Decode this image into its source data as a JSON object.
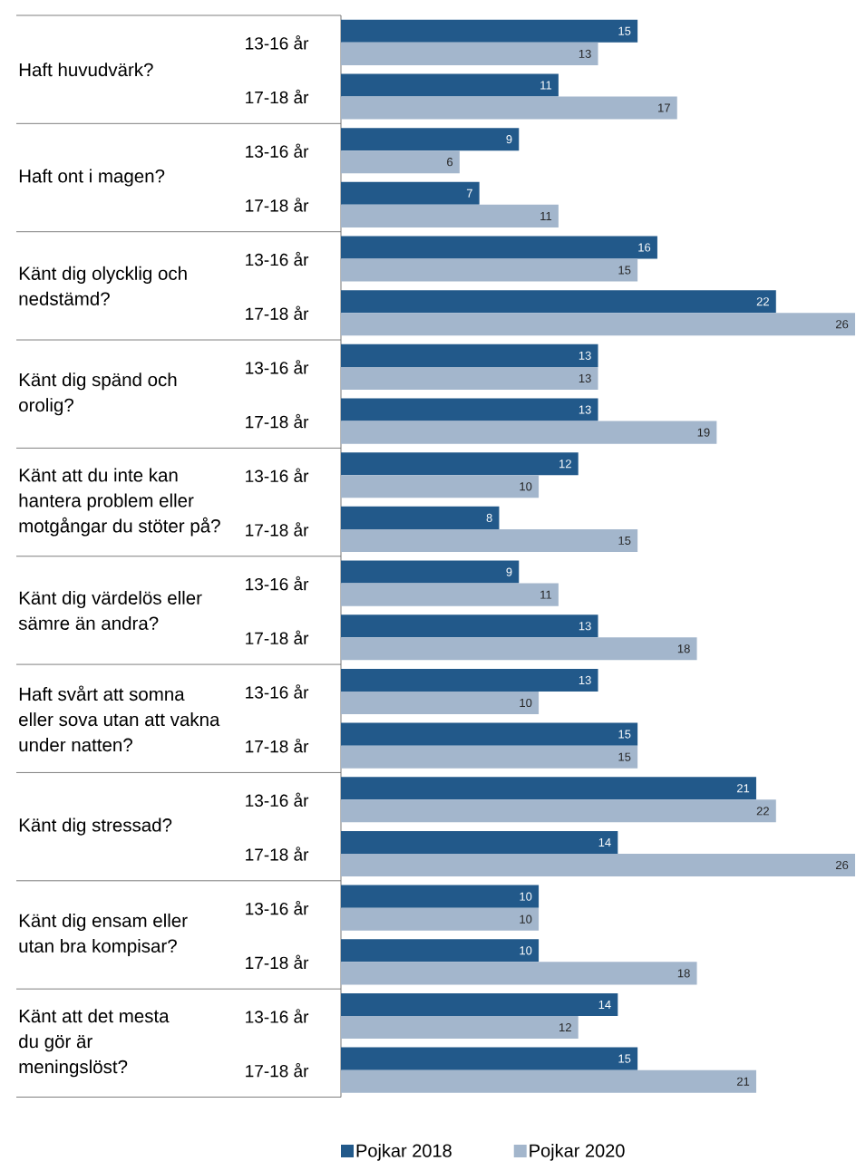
{
  "chart_data": {
    "type": "bar",
    "orientation": "horizontal",
    "categories": [
      "13-16 år",
      "17-18 år",
      "13-16 år",
      "17-18 år",
      "13-16 år",
      "17-18 år",
      "13-16 år",
      "17-18 år",
      "13-16 år",
      "17-18 år",
      "13-16 år",
      "17-18 år",
      "13-16 år",
      "17-18 år",
      "13-16 år",
      "17-18 år",
      "13-16 år",
      "17-18 år",
      "13-16 år",
      "17-18 år"
    ],
    "series": [
      {
        "name": "Pojkar 2018",
        "color": "#22598a",
        "values": [
          15,
          11,
          9,
          7,
          16,
          22,
          13,
          13,
          12,
          8,
          9,
          13,
          13,
          15,
          21,
          14,
          10,
          10,
          14,
          15
        ]
      },
      {
        "name": "Pojkar 2020",
        "color": "#a3b6cc",
        "values": [
          13,
          17,
          6,
          11,
          15,
          26,
          13,
          19,
          10,
          15,
          11,
          18,
          10,
          15,
          22,
          26,
          10,
          18,
          12,
          21
        ]
      }
    ],
    "xlim": [
      0,
      26
    ],
    "tick_labels": "y",
    "data_labels": true,
    "legend": "bottom",
    "annotations": [
      "Haft huvudvärk?",
      "Haft ont i magen?",
      "Känt dig olycklig och nedstämd?",
      "Känt dig spänd och orolig?",
      "Känt att du inte kan hantera problem eller motgångar du stöter på?",
      "Känt dig värdelös eller sämre än andra?",
      "Haft svårt att somna eller sova utan att vakna under natten?",
      "Känt dig stressad?",
      "Känt dig ensam eller utan bra kompisar?",
      "Känt att det mesta du gör är meningslöst?"
    ]
  }
}
